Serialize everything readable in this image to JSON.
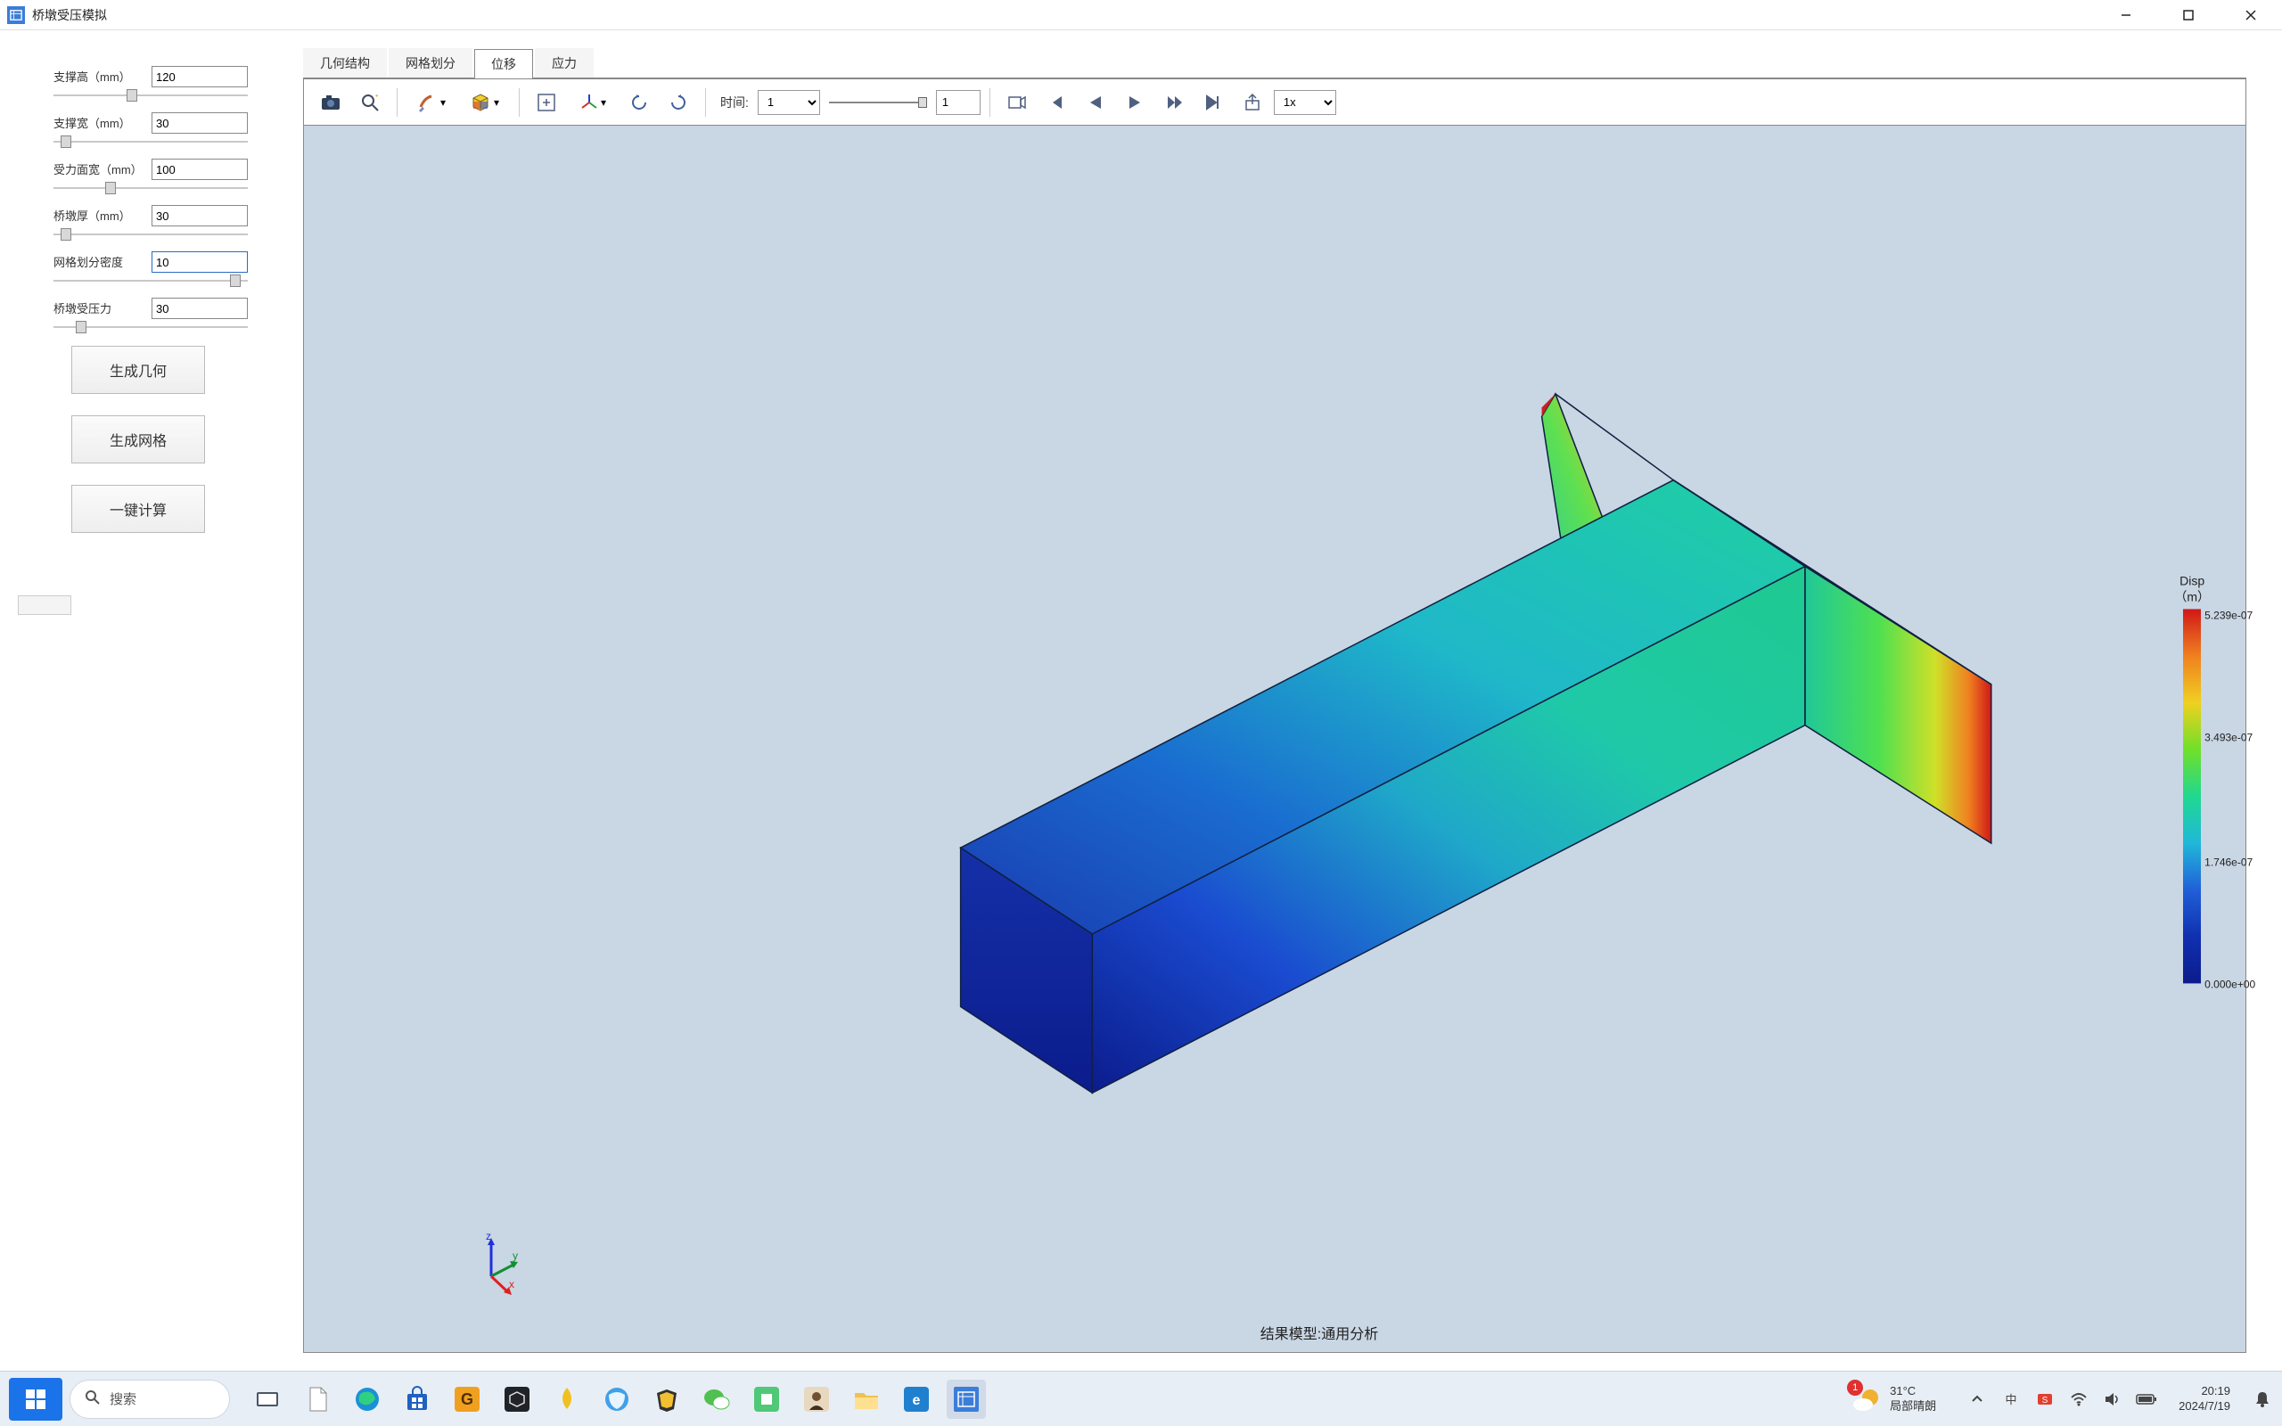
{
  "window": {
    "title": "桥墩受压模拟",
    "icon_color": "#3b7dd8"
  },
  "sidebar": {
    "params": [
      {
        "label": "支撑高（mm）",
        "value": "120",
        "thumb_pos": 0.4,
        "active": false
      },
      {
        "label": "支撑宽（mm）",
        "value": "30",
        "thumb_pos": 0.04,
        "active": false
      },
      {
        "label": "受力面宽（mm）",
        "value": "100",
        "thumb_pos": 0.28,
        "active": false
      },
      {
        "label": "桥墩厚（mm）",
        "value": "30",
        "thumb_pos": 0.04,
        "active": false
      },
      {
        "label": "网格划分密度",
        "value": "10",
        "thumb_pos": 0.96,
        "active": true
      },
      {
        "label": "桥墩受压力",
        "value": "30",
        "thumb_pos": 0.12,
        "active": false
      }
    ],
    "buttons": {
      "gen_geom": "生成几何",
      "gen_mesh": "生成网格",
      "compute": "一键计算"
    }
  },
  "tabs": {
    "items": [
      "几何结构",
      "网格划分",
      "位移",
      "应力"
    ],
    "selected": 2
  },
  "toolbar": {
    "time_label": "时间:",
    "time_select": "1",
    "step_value": "1",
    "speed": "1x",
    "icons": [
      "camera-icon",
      "zoom-icon",
      "brush-dropdown-icon",
      "cube-dropdown-icon",
      "fit-icon",
      "axes-icon",
      "rotate-left-icon",
      "rotate-right-icon",
      "record-icon",
      "first-icon",
      "prev-icon",
      "play-icon",
      "next-icon",
      "last-icon",
      "export-icon"
    ]
  },
  "viewport": {
    "background": "#c9d6e4",
    "model": {
      "type": "3d-fem-displacement",
      "gradient_stops": [
        {
          "p": 0.0,
          "c": "#0b1c8c"
        },
        {
          "p": 0.2,
          "c": "#1a4bd0"
        },
        {
          "p": 0.4,
          "c": "#1fa8c9"
        },
        {
          "p": 0.55,
          "c": "#1fc9a8"
        },
        {
          "p": 0.7,
          "c": "#3fe05a"
        },
        {
          "p": 0.82,
          "c": "#d8e028"
        },
        {
          "p": 0.92,
          "c": "#f08020"
        },
        {
          "p": 1.0,
          "c": "#d01818"
        }
      ]
    },
    "caption": "结果模型:通用分析",
    "axis_labels": {
      "x": "x",
      "y": "y",
      "z": "z"
    }
  },
  "legend": {
    "title": "Disp",
    "unit": "（m）",
    "ticks": [
      {
        "p": 0.0,
        "label": "5.239e-07"
      },
      {
        "p": 0.33,
        "label": "3.493e-07"
      },
      {
        "p": 0.67,
        "label": "1.746e-07"
      },
      {
        "p": 1.0,
        "label": "0.000e+00"
      }
    ],
    "gradient": [
      "#d01818",
      "#f08020",
      "#f0d020",
      "#70e028",
      "#20d890",
      "#20b8d8",
      "#2060d8",
      "#1030b0",
      "#0b1c8c"
    ]
  },
  "taskbar": {
    "search_placeholder": "搜索",
    "weather": {
      "temp": "31°C",
      "desc": "局部晴朗",
      "badge": "1"
    },
    "clock": {
      "time": "20:19",
      "date": "2024/7/19"
    }
  }
}
